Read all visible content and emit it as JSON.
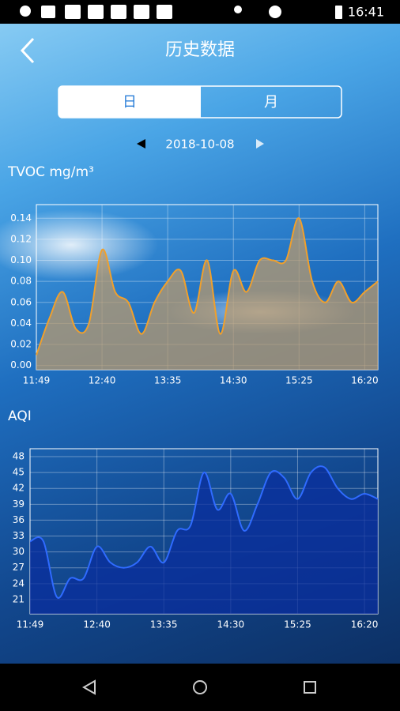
{
  "status_bar": {
    "time": "16:41"
  },
  "header": {
    "title": "历史数据"
  },
  "tabs": [
    "日",
    "月"
  ],
  "date": "2018-10-08",
  "chart_data": [
    {
      "type": "line",
      "title": "TVOC mg/m³",
      "categories": [
        "11:49",
        null,
        null,
        null,
        null,
        "12:40",
        null,
        null,
        null,
        null,
        "13:35",
        null,
        null,
        null,
        null,
        "14:30",
        null,
        null,
        null,
        null,
        "15:25",
        null,
        null,
        null,
        null,
        "16:20",
        null
      ],
      "values": [
        0.01,
        0.045,
        0.07,
        0.035,
        0.04,
        0.11,
        0.07,
        0.06,
        0.03,
        0.06,
        0.08,
        0.09,
        0.05,
        0.1,
        0.03,
        0.09,
        0.07,
        0.1,
        0.1,
        0.1,
        0.14,
        0.08,
        0.06,
        0.08,
        0.06,
        0.07,
        0.08
      ],
      "color": "#f0a02c",
      "fill_color": "#b89a6e",
      "ylim": [
        -0.004,
        0.153
      ],
      "yticks": [
        {
          "value": 0,
          "label": "0.00"
        },
        {
          "value": 0.02,
          "label": "0.02"
        },
        {
          "value": 0.04,
          "label": "0.04"
        },
        {
          "value": 0.06,
          "label": "0.06"
        },
        {
          "value": 0.08,
          "label": "0.08"
        },
        {
          "value": 0.1,
          "label": "0.10"
        },
        {
          "value": 0.12,
          "label": "0.12"
        },
        {
          "value": 0.14,
          "label": "0.14"
        }
      ],
      "grid": true
    },
    {
      "type": "line",
      "title": "AQI",
      "categories": [
        "11:49",
        null,
        null,
        null,
        null,
        "12:40",
        null,
        null,
        null,
        null,
        "13:35",
        null,
        null,
        null,
        null,
        "14:30",
        null,
        null,
        null,
        null,
        "15:25",
        null,
        null,
        null,
        null,
        "16:20",
        null
      ],
      "values": [
        32,
        32,
        21.5,
        25,
        25,
        31,
        28,
        27,
        28,
        31,
        28,
        34,
        35,
        45,
        38,
        41,
        34,
        39,
        45,
        44,
        40,
        45,
        46,
        42,
        40,
        41,
        40
      ],
      "color": "#2f6bff",
      "fill_color": "#0a2e9e",
      "ylim": [
        18.3,
        49.5
      ],
      "yticks": [
        21,
        24,
        27,
        30,
        33,
        36,
        39,
        42,
        45,
        48
      ],
      "grid": true
    }
  ]
}
